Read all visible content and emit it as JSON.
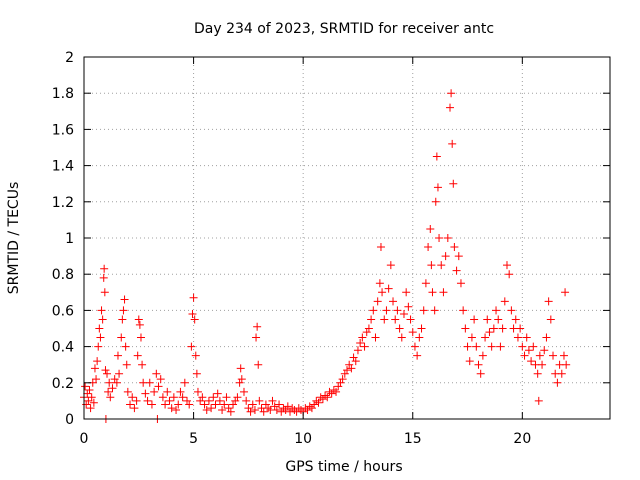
{
  "chart_data": {
    "type": "scatter",
    "title": "Day 234 of 2023, SRMTID for receiver antc",
    "xlabel": "GPS time / hours",
    "ylabel": "SRMTID / TECUs",
    "xlim": [
      0,
      24
    ],
    "ylim": [
      0,
      2
    ],
    "xticks": [
      0,
      5,
      10,
      15,
      20
    ],
    "xtick_labels": [
      "0",
      "5",
      "10",
      "15",
      "20"
    ],
    "yticks": [
      0,
      0.2,
      0.4,
      0.6,
      0.8,
      1,
      1.2,
      1.4,
      1.6,
      1.8,
      2
    ],
    "ytick_labels": [
      "0",
      "0.2",
      "0.4",
      "0.6",
      "0.8",
      "1",
      "1.2",
      "1.4",
      "1.6",
      "1.8",
      "2"
    ],
    "grid": true,
    "marker": "plus",
    "color": "#ff0000",
    "series": [
      {
        "name": "antc",
        "points": [
          [
            0.0,
            0.12
          ],
          [
            0.05,
            0.18
          ],
          [
            0.1,
            0.08
          ],
          [
            0.15,
            0.14
          ],
          [
            0.2,
            0.1
          ],
          [
            0.25,
            0.16
          ],
          [
            0.3,
            0.06
          ],
          [
            0.35,
            0.12
          ],
          [
            0.4,
            0.2
          ],
          [
            0.45,
            0.09
          ],
          [
            0.5,
            0.28
          ],
          [
            0.55,
            0.22
          ],
          [
            0.6,
            0.32
          ],
          [
            0.65,
            0.4
          ],
          [
            0.7,
            0.5
          ],
          [
            0.75,
            0.45
          ],
          [
            0.8,
            0.6
          ],
          [
            0.85,
            0.55
          ],
          [
            0.9,
            0.78
          ],
          [
            0.92,
            0.83
          ],
          [
            0.95,
            0.7
          ],
          [
            0.98,
            0.27
          ],
          [
            1.0,
            0.0
          ],
          [
            1.05,
            0.25
          ],
          [
            1.1,
            0.15
          ],
          [
            1.15,
            0.2
          ],
          [
            1.2,
            0.12
          ],
          [
            1.3,
            0.17
          ],
          [
            1.4,
            0.22
          ],
          [
            1.5,
            0.2
          ],
          [
            1.55,
            0.35
          ],
          [
            1.6,
            0.25
          ],
          [
            1.7,
            0.45
          ],
          [
            1.75,
            0.55
          ],
          [
            1.8,
            0.6
          ],
          [
            1.85,
            0.66
          ],
          [
            1.9,
            0.4
          ],
          [
            1.95,
            0.3
          ],
          [
            2.0,
            0.15
          ],
          [
            2.1,
            0.08
          ],
          [
            2.2,
            0.12
          ],
          [
            2.3,
            0.06
          ],
          [
            2.4,
            0.1
          ],
          [
            2.45,
            0.35
          ],
          [
            2.5,
            0.55
          ],
          [
            2.55,
            0.52
          ],
          [
            2.6,
            0.45
          ],
          [
            2.65,
            0.3
          ],
          [
            2.7,
            0.2
          ],
          [
            2.8,
            0.14
          ],
          [
            2.9,
            0.1
          ],
          [
            3.0,
            0.2
          ],
          [
            3.1,
            0.08
          ],
          [
            3.2,
            0.15
          ],
          [
            3.3,
            0.25
          ],
          [
            3.35,
            0.0
          ],
          [
            3.4,
            0.18
          ],
          [
            3.5,
            0.22
          ],
          [
            3.6,
            0.12
          ],
          [
            3.7,
            0.08
          ],
          [
            3.8,
            0.15
          ],
          [
            3.9,
            0.1
          ],
          [
            4.0,
            0.06
          ],
          [
            4.1,
            0.12
          ],
          [
            4.2,
            0.05
          ],
          [
            4.3,
            0.08
          ],
          [
            4.4,
            0.15
          ],
          [
            4.5,
            0.12
          ],
          [
            4.6,
            0.2
          ],
          [
            4.7,
            0.1
          ],
          [
            4.8,
            0.08
          ],
          [
            4.9,
            0.4
          ],
          [
            4.95,
            0.58
          ],
          [
            5.0,
            0.67
          ],
          [
            5.05,
            0.55
          ],
          [
            5.1,
            0.35
          ],
          [
            5.15,
            0.25
          ],
          [
            5.2,
            0.15
          ],
          [
            5.3,
            0.1
          ],
          [
            5.4,
            0.12
          ],
          [
            5.5,
            0.08
          ],
          [
            5.6,
            0.05
          ],
          [
            5.7,
            0.1
          ],
          [
            5.8,
            0.06
          ],
          [
            5.9,
            0.12
          ],
          [
            6.0,
            0.08
          ],
          [
            6.1,
            0.14
          ],
          [
            6.2,
            0.1
          ],
          [
            6.3,
            0.05
          ],
          [
            6.4,
            0.08
          ],
          [
            6.5,
            0.12
          ],
          [
            6.6,
            0.06
          ],
          [
            6.7,
            0.04
          ],
          [
            6.8,
            0.08
          ],
          [
            6.9,
            0.1
          ],
          [
            7.0,
            0.12
          ],
          [
            7.1,
            0.2
          ],
          [
            7.15,
            0.28
          ],
          [
            7.2,
            0.22
          ],
          [
            7.3,
            0.15
          ],
          [
            7.4,
            0.1
          ],
          [
            7.5,
            0.06
          ],
          [
            7.6,
            0.04
          ],
          [
            7.7,
            0.08
          ],
          [
            7.8,
            0.05
          ],
          [
            7.85,
            0.45
          ],
          [
            7.9,
            0.51
          ],
          [
            7.95,
            0.3
          ],
          [
            8.0,
            0.1
          ],
          [
            8.1,
            0.06
          ],
          [
            8.2,
            0.04
          ],
          [
            8.3,
            0.08
          ],
          [
            8.4,
            0.06
          ],
          [
            8.5,
            0.05
          ],
          [
            8.6,
            0.1
          ],
          [
            8.7,
            0.07
          ],
          [
            8.8,
            0.05
          ],
          [
            8.9,
            0.08
          ],
          [
            9.0,
            0.04
          ],
          [
            9.1,
            0.06
          ],
          [
            9.2,
            0.05
          ],
          [
            9.3,
            0.07
          ],
          [
            9.4,
            0.04
          ],
          [
            9.5,
            0.06
          ],
          [
            9.6,
            0.05
          ],
          [
            9.7,
            0.04
          ],
          [
            9.8,
            0.06
          ],
          [
            9.9,
            0.05
          ],
          [
            10.0,
            0.04
          ],
          [
            10.1,
            0.06
          ],
          [
            10.2,
            0.05
          ],
          [
            10.3,
            0.07
          ],
          [
            10.4,
            0.06
          ],
          [
            10.5,
            0.08
          ],
          [
            10.6,
            0.1
          ],
          [
            10.7,
            0.09
          ],
          [
            10.8,
            0.12
          ],
          [
            10.9,
            0.11
          ],
          [
            11.0,
            0.13
          ],
          [
            11.1,
            0.12
          ],
          [
            11.2,
            0.15
          ],
          [
            11.3,
            0.14
          ],
          [
            11.4,
            0.16
          ],
          [
            11.5,
            0.15
          ],
          [
            11.6,
            0.18
          ],
          [
            11.7,
            0.2
          ],
          [
            11.8,
            0.22
          ],
          [
            11.9,
            0.25
          ],
          [
            12.0,
            0.27
          ],
          [
            12.1,
            0.3
          ],
          [
            12.2,
            0.28
          ],
          [
            12.3,
            0.34
          ],
          [
            12.4,
            0.32
          ],
          [
            12.5,
            0.38
          ],
          [
            12.6,
            0.42
          ],
          [
            12.7,
            0.45
          ],
          [
            12.8,
            0.4
          ],
          [
            12.9,
            0.48
          ],
          [
            13.0,
            0.5
          ],
          [
            13.1,
            0.55
          ],
          [
            13.2,
            0.6
          ],
          [
            13.3,
            0.45
          ],
          [
            13.4,
            0.65
          ],
          [
            13.5,
            0.75
          ],
          [
            13.55,
            0.95
          ],
          [
            13.6,
            0.7
          ],
          [
            13.7,
            0.55
          ],
          [
            13.8,
            0.6
          ],
          [
            13.9,
            0.72
          ],
          [
            14.0,
            0.85
          ],
          [
            14.1,
            0.65
          ],
          [
            14.2,
            0.55
          ],
          [
            14.3,
            0.6
          ],
          [
            14.4,
            0.5
          ],
          [
            14.5,
            0.45
          ],
          [
            14.6,
            0.58
          ],
          [
            14.7,
            0.7
          ],
          [
            14.8,
            0.62
          ],
          [
            14.9,
            0.55
          ],
          [
            15.0,
            0.48
          ],
          [
            15.1,
            0.4
          ],
          [
            15.2,
            0.35
          ],
          [
            15.3,
            0.45
          ],
          [
            15.4,
            0.5
          ],
          [
            15.5,
            0.6
          ],
          [
            15.6,
            0.75
          ],
          [
            15.7,
            0.95
          ],
          [
            15.8,
            1.05
          ],
          [
            15.85,
            0.85
          ],
          [
            15.9,
            0.7
          ],
          [
            16.0,
            0.6
          ],
          [
            16.05,
            1.2
          ],
          [
            16.1,
            1.45
          ],
          [
            16.15,
            1.28
          ],
          [
            16.2,
            1.0
          ],
          [
            16.3,
            0.85
          ],
          [
            16.4,
            0.7
          ],
          [
            16.5,
            0.9
          ],
          [
            16.6,
            1.0
          ],
          [
            16.7,
            1.72
          ],
          [
            16.75,
            1.8
          ],
          [
            16.8,
            1.52
          ],
          [
            16.85,
            1.3
          ],
          [
            16.9,
            0.95
          ],
          [
            17.0,
            0.82
          ],
          [
            17.1,
            0.9
          ],
          [
            17.2,
            0.75
          ],
          [
            17.3,
            0.6
          ],
          [
            17.4,
            0.5
          ],
          [
            17.5,
            0.4
          ],
          [
            17.6,
            0.32
          ],
          [
            17.7,
            0.45
          ],
          [
            17.8,
            0.55
          ],
          [
            17.9,
            0.4
          ],
          [
            18.0,
            0.3
          ],
          [
            18.1,
            0.25
          ],
          [
            18.2,
            0.35
          ],
          [
            18.3,
            0.45
          ],
          [
            18.4,
            0.55
          ],
          [
            18.5,
            0.48
          ],
          [
            18.6,
            0.4
          ],
          [
            18.7,
            0.5
          ],
          [
            18.8,
            0.6
          ],
          [
            18.9,
            0.55
          ],
          [
            19.0,
            0.4
          ],
          [
            19.1,
            0.5
          ],
          [
            19.2,
            0.65
          ],
          [
            19.3,
            0.85
          ],
          [
            19.4,
            0.8
          ],
          [
            19.5,
            0.6
          ],
          [
            19.6,
            0.5
          ],
          [
            19.7,
            0.55
          ],
          [
            19.8,
            0.45
          ],
          [
            19.9,
            0.5
          ],
          [
            20.0,
            0.4
          ],
          [
            20.1,
            0.35
          ],
          [
            20.2,
            0.45
          ],
          [
            20.3,
            0.38
          ],
          [
            20.4,
            0.32
          ],
          [
            20.5,
            0.4
          ],
          [
            20.6,
            0.3
          ],
          [
            20.7,
            0.25
          ],
          [
            20.75,
            0.1
          ],
          [
            20.8,
            0.35
          ],
          [
            20.9,
            0.3
          ],
          [
            21.0,
            0.38
          ],
          [
            21.1,
            0.45
          ],
          [
            21.2,
            0.65
          ],
          [
            21.3,
            0.55
          ],
          [
            21.4,
            0.35
          ],
          [
            21.5,
            0.25
          ],
          [
            21.6,
            0.2
          ],
          [
            21.7,
            0.3
          ],
          [
            21.8,
            0.25
          ],
          [
            21.9,
            0.35
          ],
          [
            21.95,
            0.7
          ],
          [
            22.0,
            0.3
          ]
        ]
      }
    ]
  }
}
